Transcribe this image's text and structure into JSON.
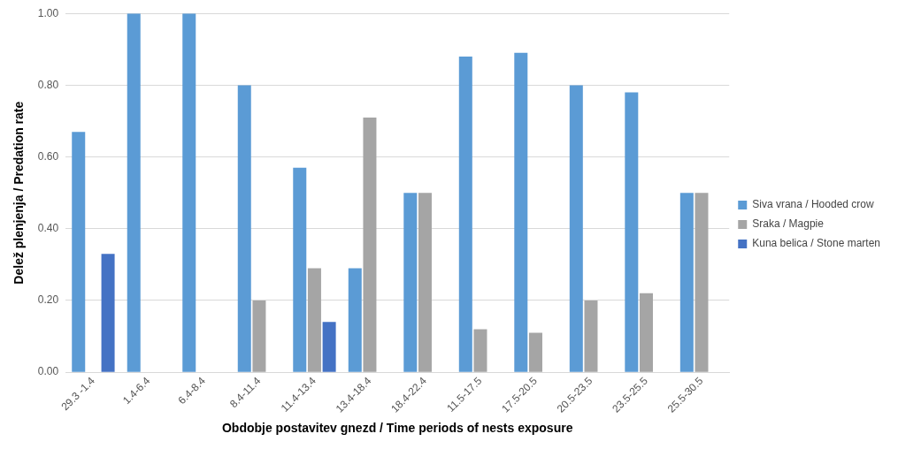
{
  "chart_data": {
    "type": "bar",
    "xlabel": "Obdobje postavitev gnezd / Time periods of nests exposure",
    "ylabel": "Delež plenjenja / Predation rate",
    "categories": [
      "29.3 -1.4",
      "1.4-6.4",
      "6.4-8.4",
      "8.4-11.4",
      "11.4-13.4",
      "13.4-18.4",
      "18.4-22.4",
      "11.5-17.5",
      "17.5-20.5",
      "20.5-23.5",
      "23.5-25.5",
      "25.5-30.5"
    ],
    "series": [
      {
        "name": "Siva vrana / Hooded crow",
        "color": "#5b9bd5",
        "values": [
          0.67,
          1.0,
          1.0,
          0.8,
          0.57,
          0.29,
          0.5,
          0.88,
          0.89,
          0.8,
          0.78,
          0.5
        ]
      },
      {
        "name": "Sraka / Magpie",
        "color": "#a5a5a5",
        "values": [
          0,
          0,
          0,
          0.2,
          0.29,
          0.71,
          0.5,
          0.12,
          0.11,
          0.2,
          0.22,
          0.5
        ]
      },
      {
        "name": "Kuna belica / Stone marten",
        "color": "#4472c4",
        "values": [
          0.33,
          0,
          0,
          0,
          0.14,
          0,
          0,
          0,
          0,
          0,
          0,
          0
        ]
      }
    ],
    "ylim": [
      0,
      1
    ],
    "yticks": [
      {
        "value": 0,
        "label": "0.00"
      },
      {
        "value": 0.2,
        "label": "0.20"
      },
      {
        "value": 0.4,
        "label": "0.40"
      },
      {
        "value": 0.6,
        "label": "0.60"
      },
      {
        "value": 0.8,
        "label": "0.80"
      },
      {
        "value": 1,
        "label": "1.00"
      }
    ],
    "grid": "y",
    "legend": "right"
  }
}
